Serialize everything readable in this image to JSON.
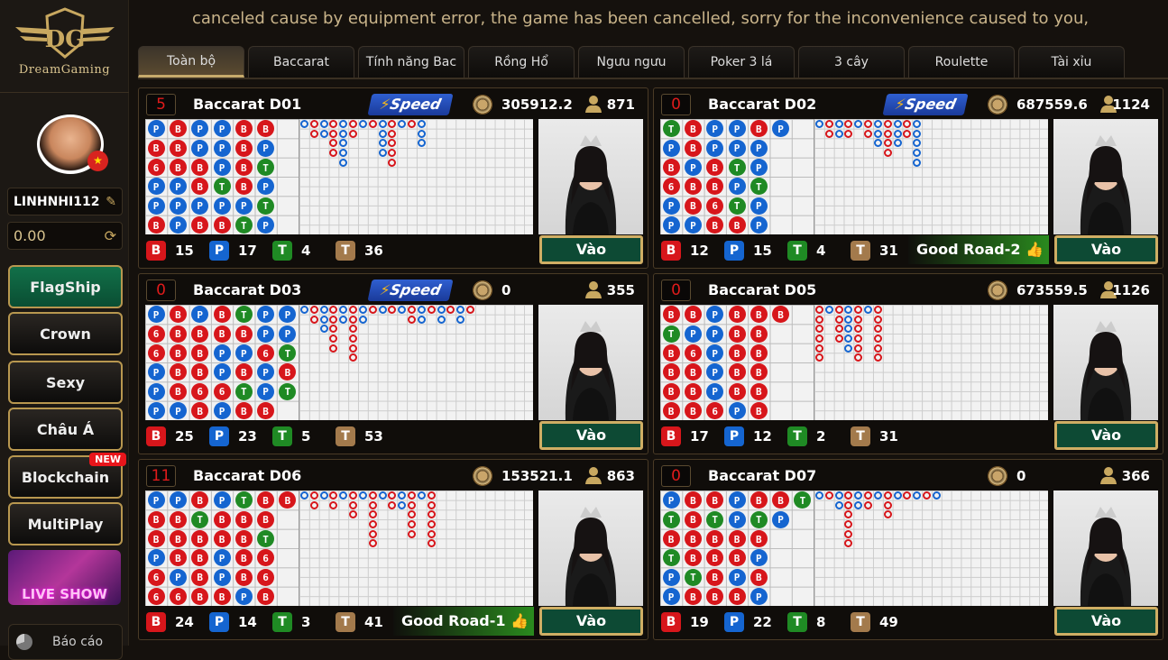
{
  "brand": "DreamGaming",
  "marquee": "canceled cause by equipment error, the game has been cancelled, sorry for the inconvenience caused to you,",
  "user": {
    "name": "LINHNHI112",
    "balance": "0.00"
  },
  "sidebar": [
    {
      "label": "FlagShip",
      "active": true
    },
    {
      "label": "Crown"
    },
    {
      "label": "Sexy"
    },
    {
      "label": "Châu Á"
    },
    {
      "label": "Blockchain",
      "badge": "NEW"
    },
    {
      "label": "MultiPlay"
    }
  ],
  "live_show": "LIVE SHOW",
  "report": "Báo cáo",
  "tabs": [
    "Toàn bộ",
    "Baccarat",
    "Tính năng Bac",
    "Rồng Hổ",
    "Ngưu ngưu",
    "Poker 3 lá",
    "3 cây",
    "Roulette",
    "Tài xỉu"
  ],
  "enter_label": "Vào",
  "speed_label": "Speed",
  "colors": {
    "banker": "#d7161b",
    "player": "#1565d0",
    "tie": "#1f8a24",
    "tie_brown": "#a37a4c",
    "accent": "#c7ab6c"
  },
  "tables": [
    {
      "count": "5",
      "name": "Baccarat D01",
      "speed": true,
      "amount": "305912.2",
      "users": "871",
      "B": "15",
      "P": "17",
      "T": "4",
      "T2": "36",
      "good": "",
      "bead": [
        "PBPPBB",
        "BBPPBP",
        "6BBPBT",
        "PPBTBP",
        "PPPPPT",
        "BPBBTP"
      ]
    },
    {
      "count": "0",
      "name": "Baccarat D02",
      "speed": true,
      "amount": "687559.6",
      "users": "1124",
      "B": "12",
      "P": "15",
      "T": "4",
      "T2": "31",
      "good": "Good Road-2",
      "bead": [
        "TBPPBP",
        "PBPPP",
        "BPBTP",
        "6BBPT",
        "PB6TP",
        "PPBBP"
      ]
    },
    {
      "count": "0",
      "name": "Baccarat D03",
      "speed": true,
      "amount": "0",
      "users": "355",
      "B": "25",
      "P": "23",
      "T": "5",
      "T2": "53",
      "good": "",
      "bead": [
        "PBPBTPP",
        "6BBBBPP",
        "6BBPP6T",
        "PBBPBPB",
        "PB66TPT",
        "PPBPBB"
      ]
    },
    {
      "count": "0",
      "name": "Baccarat D05",
      "speed": false,
      "amount": "673559.5",
      "users": "1126",
      "B": "17",
      "P": "12",
      "T": "2",
      "T2": "31",
      "good": "",
      "bead": [
        "BBPBBB",
        "TPPBB",
        "B6PBB",
        "BBPBB",
        "BBPBB",
        "BB6PB"
      ]
    },
    {
      "count": "11",
      "name": "Baccarat D06",
      "speed": false,
      "amount": "153521.1",
      "users": "863",
      "B": "24",
      "P": "14",
      "T": "3",
      "T2": "41",
      "good": "Good Road-1",
      "bead": [
        "PPBPTBB",
        "BBTBBB",
        "BBBBBT",
        "PBBPB6",
        "6PBPB6",
        "66BBPB"
      ]
    },
    {
      "count": "0",
      "name": "Baccarat D07",
      "speed": false,
      "amount": "0",
      "users": "366",
      "B": "19",
      "P": "22",
      "T": "8",
      "T2": "49",
      "good": "",
      "bead": [
        "PBBPBBT",
        "TBTPTP",
        "BBBBB",
        "TBBBP",
        "PTBPB",
        "PBBBP"
      ]
    }
  ]
}
